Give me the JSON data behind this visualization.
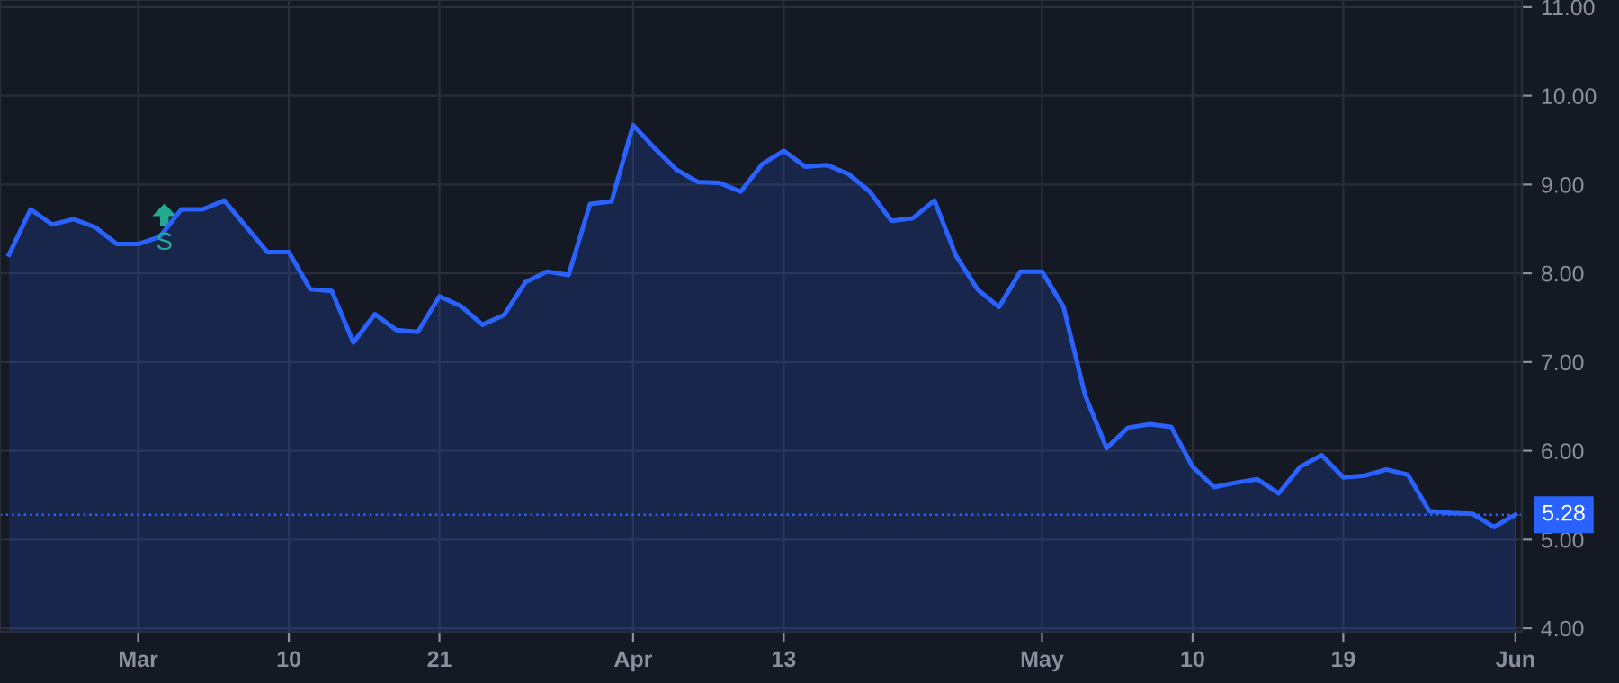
{
  "chart_data": {
    "type": "area",
    "categories": [
      null,
      null,
      null,
      null,
      null,
      null,
      "Mar",
      null,
      null,
      null,
      null,
      null,
      null,
      "10",
      null,
      null,
      null,
      null,
      null,
      null,
      "21",
      null,
      null,
      null,
      null,
      null,
      null,
      null,
      null,
      "Apr",
      null,
      null,
      null,
      null,
      null,
      null,
      "13",
      null,
      null,
      null,
      null,
      null,
      null,
      null,
      null,
      null,
      null,
      null,
      "May",
      null,
      null,
      null,
      null,
      null,
      null,
      "10",
      null,
      null,
      null,
      null,
      null,
      null,
      "19",
      null,
      null,
      null,
      null,
      null,
      null,
      null,
      "Jun"
    ],
    "series": [
      {
        "color": "#2962ff",
        "values": [
          8.21,
          8.72,
          8.55,
          8.61,
          8.52,
          8.33,
          8.33,
          8.41,
          8.72,
          8.72,
          8.82,
          8.53,
          8.24,
          8.24,
          7.82,
          7.8,
          7.22,
          7.54,
          7.36,
          7.34,
          7.74,
          7.63,
          7.42,
          7.53,
          7.9,
          8.02,
          7.98,
          8.78,
          8.81,
          9.67,
          9.41,
          9.17,
          9.03,
          9.02,
          8.92,
          9.23,
          9.38,
          9.2,
          9.22,
          9.12,
          8.92,
          8.59,
          8.62,
          8.82,
          8.2,
          7.82,
          7.62,
          8.02,
          8.02,
          7.62,
          6.63,
          6.03,
          6.26,
          6.3,
          6.27,
          5.82,
          5.59,
          5.64,
          5.68,
          5.52,
          5.82,
          5.95,
          5.7,
          5.72,
          5.79,
          5.73,
          5.32,
          5.3,
          5.29,
          5.14,
          5.28
        ]
      }
    ],
    "ylim": [
      3.96,
      11.08
    ],
    "yticks": [
      {
        "value": 4,
        "label": "4.00"
      },
      {
        "value": 5,
        "label": "5.00"
      },
      {
        "value": 6,
        "label": "6.00"
      },
      {
        "value": 7,
        "label": "7.00"
      },
      {
        "value": 8,
        "label": "8.00"
      },
      {
        "value": 9,
        "label": "9.00"
      },
      {
        "value": 10,
        "label": "10.00"
      },
      {
        "value": 11,
        "label": "11.00"
      }
    ],
    "grid": true,
    "ref_lines": [
      {
        "axis": "y",
        "value": 5.28,
        "label": "5.28",
        "color": "#2962ff",
        "line_style": "dotted"
      }
    ],
    "annotations": [
      "S"
    ]
  }
}
